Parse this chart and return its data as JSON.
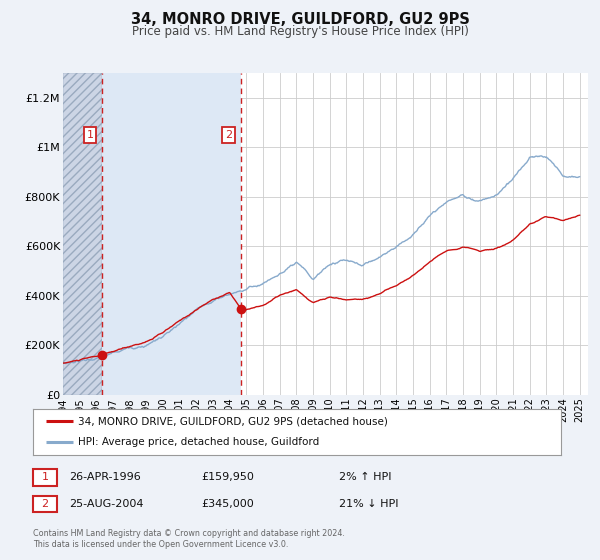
{
  "title": "34, MONRO DRIVE, GUILDFORD, GU2 9PS",
  "subtitle": "Price paid vs. HM Land Registry's House Price Index (HPI)",
  "bg_color": "#eef2f8",
  "plot_bg_color": "#ffffff",
  "red_line_color": "#cc1111",
  "blue_line_color": "#88aacc",
  "sale1_date_num": 1996.32,
  "sale1_price": 159950,
  "sale2_date_num": 2004.65,
  "sale2_price": 345000,
  "vline_color": "#cc2222",
  "ylim_min": 0,
  "ylim_max": 1300000,
  "xlim_min": 1994.0,
  "xlim_max": 2025.5,
  "ytick_labels": [
    "£0",
    "£200K",
    "£400K",
    "£600K",
    "£800K",
    "£1M",
    "£1.2M"
  ],
  "ytick_values": [
    0,
    200000,
    400000,
    600000,
    800000,
    1000000,
    1200000
  ],
  "legend_label1": "34, MONRO DRIVE, GUILDFORD, GU2 9PS (detached house)",
  "legend_label2": "HPI: Average price, detached house, Guildford",
  "annotation1_date": "26-APR-1996",
  "annotation1_price": "£159,950",
  "annotation1_hpi": "2% ↑ HPI",
  "annotation2_date": "25-AUG-2004",
  "annotation2_price": "£345,000",
  "annotation2_hpi": "21% ↓ HPI",
  "footer": "Contains HM Land Registry data © Crown copyright and database right 2024.\nThis data is licensed under the Open Government Licence v3.0.",
  "hatch_region_start": 1994.0,
  "hatch_region_end": 1996.32,
  "shaded_region_start": 1996.32,
  "shaded_region_end": 2004.65,
  "shaded_region_color": "#dde8f5"
}
